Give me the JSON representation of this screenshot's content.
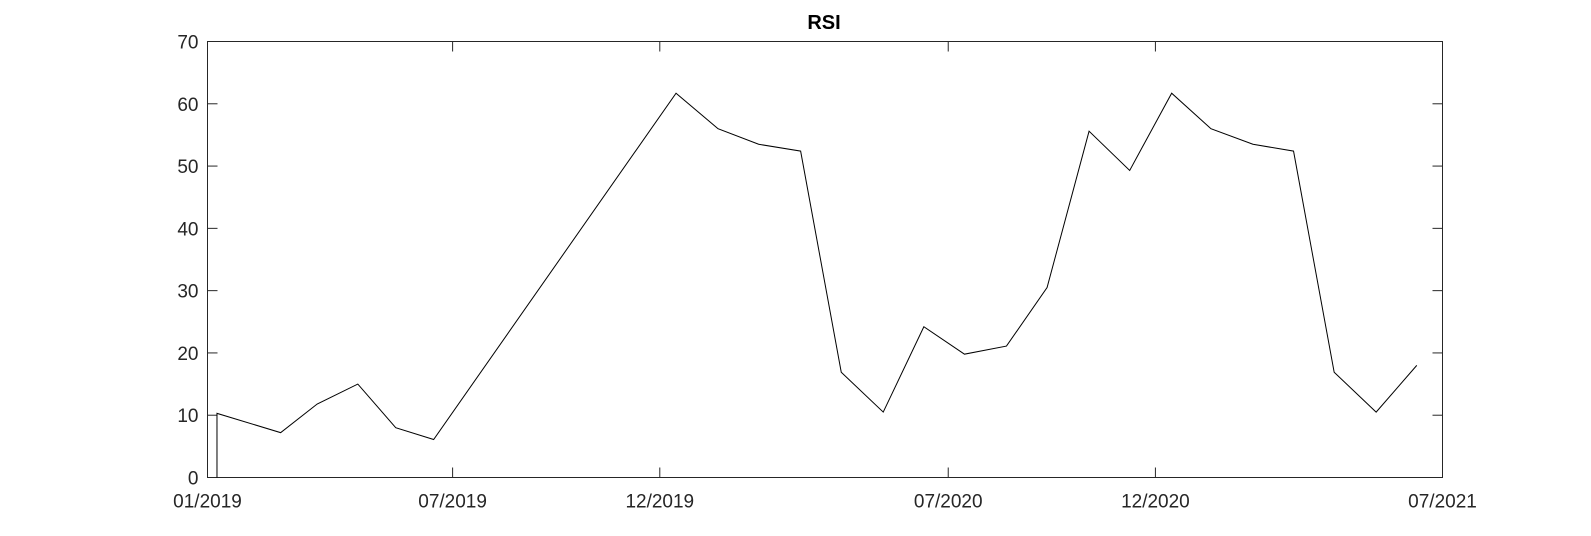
{
  "chart_data": {
    "type": "line",
    "title": "RSI",
    "xlabel": "",
    "ylabel": "",
    "ylim": [
      0,
      70
    ],
    "yticks": [
      0,
      10,
      20,
      30,
      40,
      50,
      60,
      70
    ],
    "xlim": [
      "2019-01-01",
      "2021-07-01"
    ],
    "xticks": [
      {
        "date": "2019-01-01",
        "label": "01/2019"
      },
      {
        "date": "2019-07-01",
        "label": "07/2019"
      },
      {
        "date": "2019-12-01",
        "label": "12/2019"
      },
      {
        "date": "2020-07-01",
        "label": "07/2020"
      },
      {
        "date": "2020-12-01",
        "label": "12/2020"
      },
      {
        "date": "2021-07-01",
        "label": "07/2021"
      }
    ],
    "grid": false,
    "series": [
      {
        "color": "#000000",
        "points": [
          [
            "2019-01-08",
            0
          ],
          [
            "2019-01-08",
            10.3
          ],
          [
            "2019-02-24",
            7.2
          ],
          [
            "2019-03-23",
            11.8
          ],
          [
            "2019-04-22",
            15.0
          ],
          [
            "2019-05-20",
            8.0
          ],
          [
            "2019-06-17",
            6.1
          ],
          [
            "2019-12-13",
            61.7
          ],
          [
            "2020-01-13",
            56.0
          ],
          [
            "2020-02-12",
            53.5
          ],
          [
            "2020-03-14",
            52.4
          ],
          [
            "2020-04-13",
            16.9
          ],
          [
            "2020-05-14",
            10.5
          ],
          [
            "2020-06-13",
            24.2
          ],
          [
            "2020-07-13",
            19.8
          ],
          [
            "2020-08-13",
            21.1
          ],
          [
            "2020-09-12",
            30.5
          ],
          [
            "2020-10-13",
            55.6
          ],
          [
            "2020-11-12",
            49.3
          ],
          [
            "2020-12-13",
            61.7
          ],
          [
            "2021-01-11",
            56.0
          ],
          [
            "2021-02-11",
            53.5
          ],
          [
            "2021-03-13",
            52.4
          ],
          [
            "2021-04-12",
            16.9
          ],
          [
            "2021-05-13",
            10.5
          ],
          [
            "2021-06-12",
            18.0
          ]
        ]
      }
    ]
  }
}
